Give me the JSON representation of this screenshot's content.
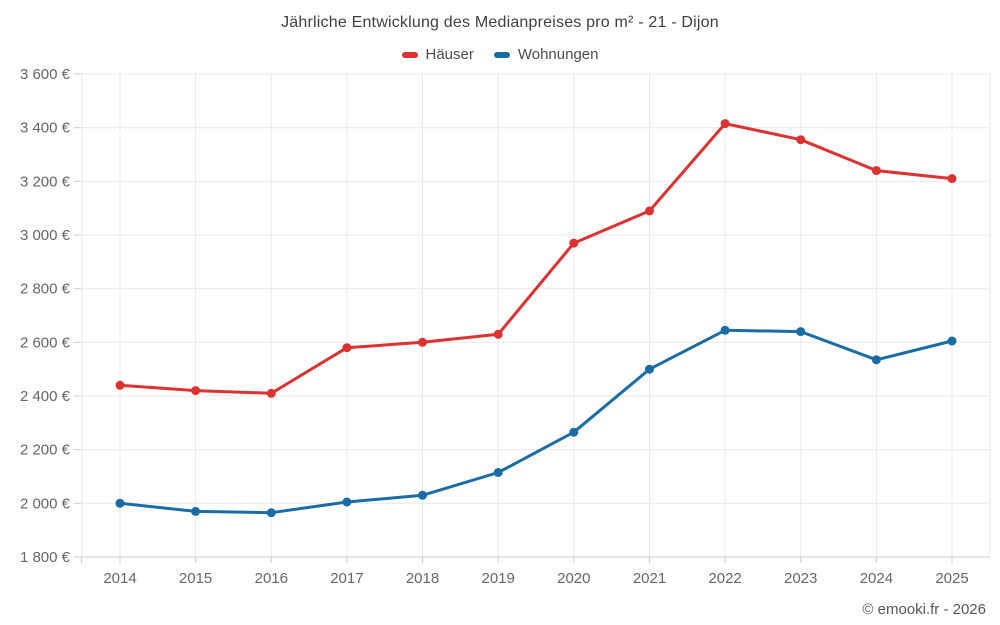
{
  "title": "Jährliche Entwicklung des Medianpreises pro m² - 21 - Dijon",
  "footer": "© emooki.fr - 2026",
  "legend": {
    "items": [
      {
        "key": "hauser",
        "label": "Häuser",
        "color": "#dc3232"
      },
      {
        "key": "wohnungen",
        "label": "Wohnungen",
        "color": "#1a6da4"
      }
    ]
  },
  "colors": {
    "grid": "#e9e9e9",
    "axis": "#cccccc",
    "tick_label": "#666666"
  },
  "chart_data": {
    "type": "line",
    "title": "Jährliche Entwicklung des Medianpreises pro m² - 21 - Dijon",
    "categories": [
      "2014",
      "2015",
      "2016",
      "2017",
      "2018",
      "2019",
      "2020",
      "2021",
      "2022",
      "2023",
      "2024",
      "2025"
    ],
    "series": [
      {
        "key": "hauser",
        "name": "Häuser",
        "color": "#dc3232",
        "values": [
          2440,
          2420,
          2410,
          2580,
          2600,
          2630,
          2970,
          3090,
          3415,
          3355,
          3240,
          3210
        ]
      },
      {
        "key": "wohnungen",
        "name": "Wohnungen",
        "color": "#1a6da4",
        "values": [
          2000,
          1970,
          1965,
          2005,
          2030,
          2115,
          2265,
          2500,
          2645,
          2640,
          2535,
          2605
        ]
      }
    ],
    "ylim": [
      1800,
      3600
    ],
    "y_tick_step": 200,
    "y_tick_labels": [
      "1 800 €",
      "2 000 €",
      "2 200 €",
      "2 400 €",
      "2 600 €",
      "2 800 €",
      "3 000 €",
      "3 200 €",
      "3 400 €",
      "3 600 €"
    ],
    "currency_suffix": "€",
    "grid": true,
    "legend_position": "top"
  }
}
